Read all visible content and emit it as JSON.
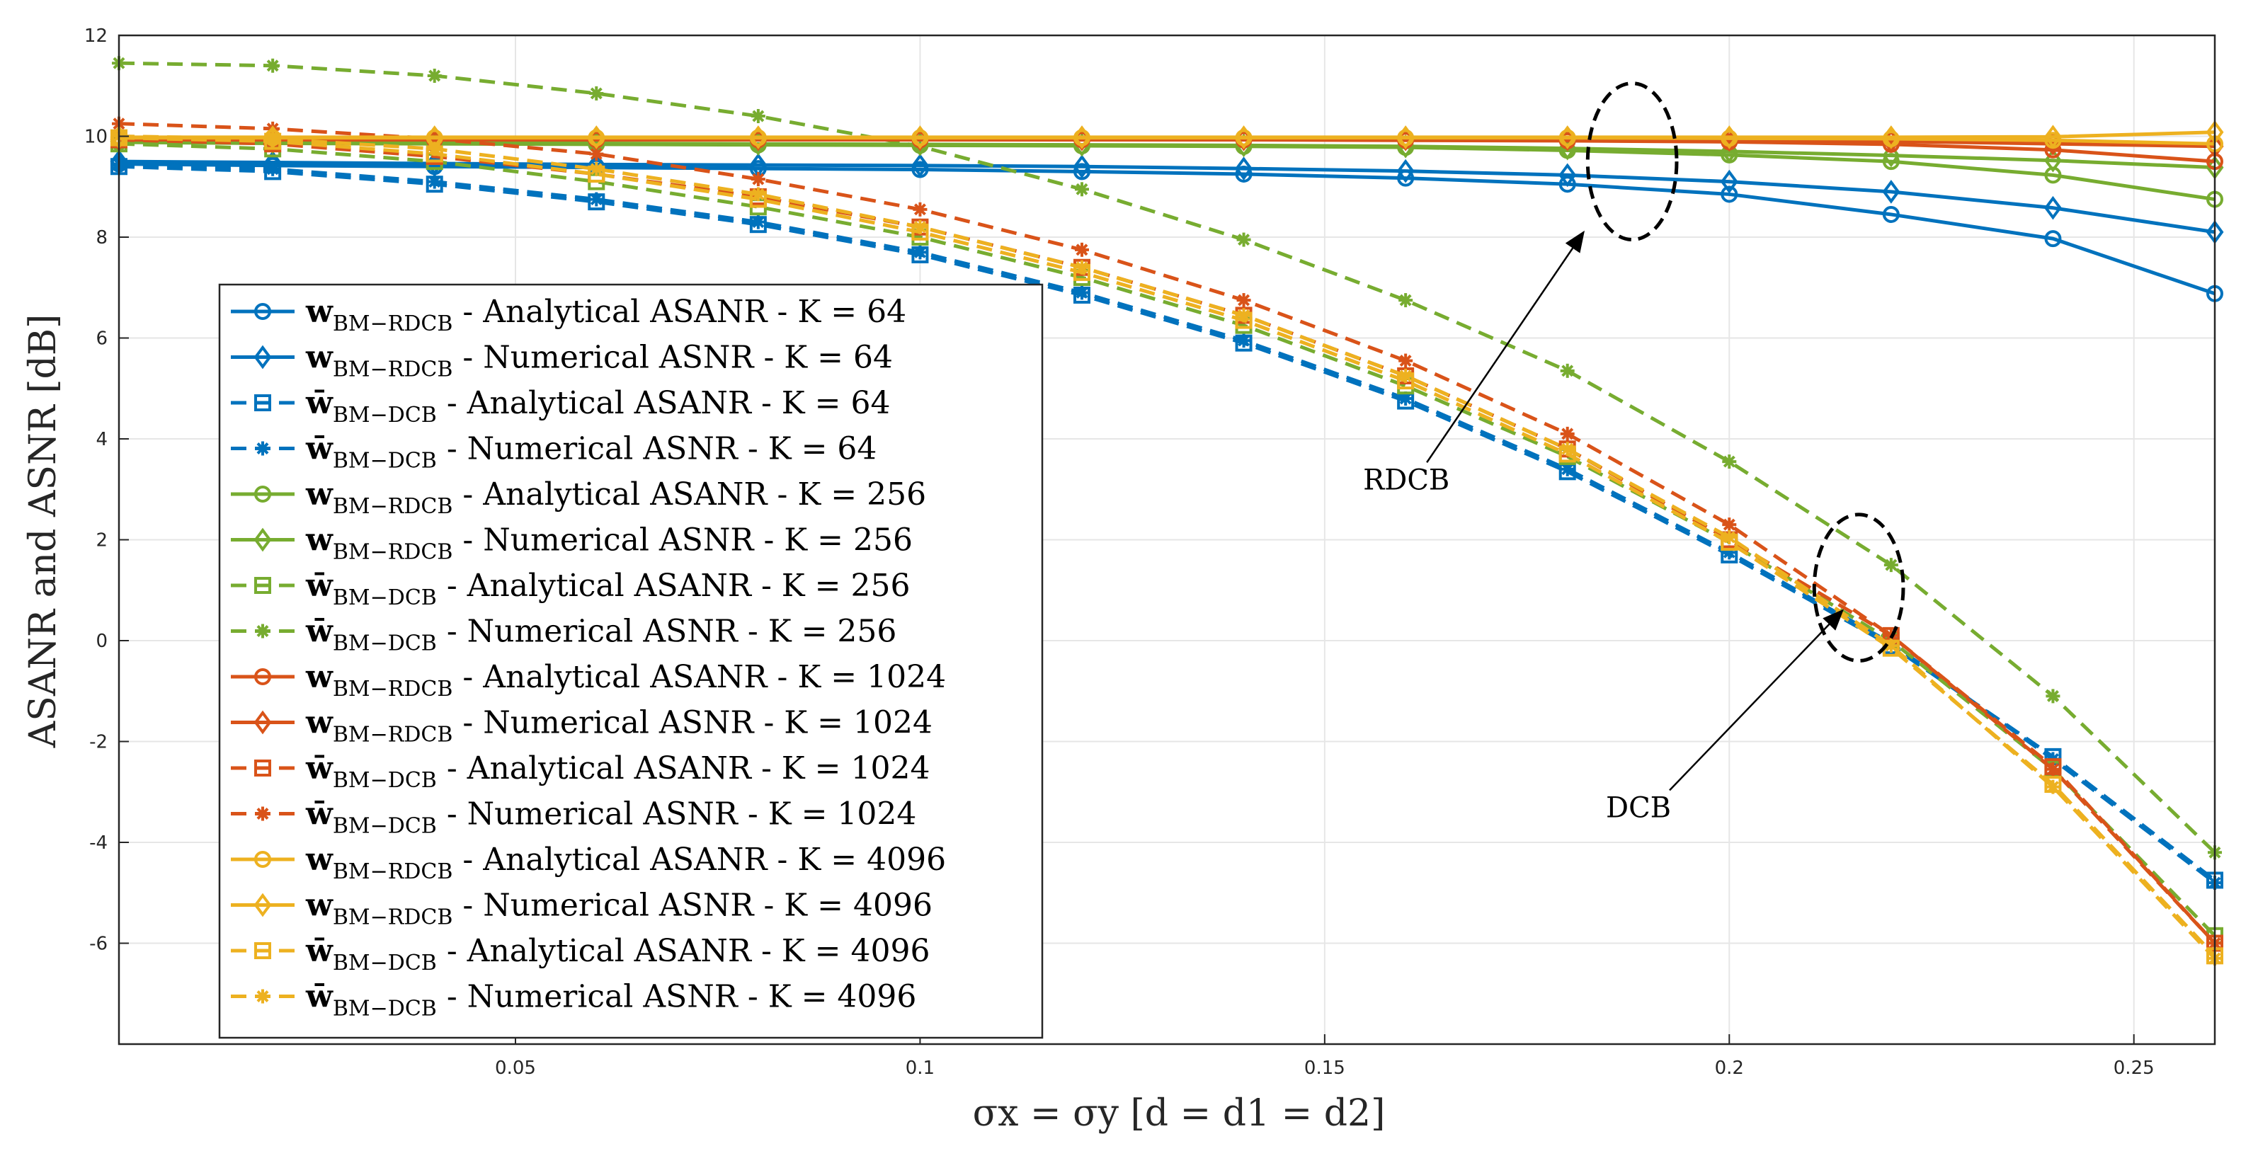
{
  "chart_data": {
    "type": "line",
    "title": "",
    "xlabel": "σx = σy [d = d1 = d2]",
    "ylabel": "ASANR and ASNR [dB]",
    "xlim": [
      0.001,
      0.26
    ],
    "ylim": [
      -8,
      12
    ],
    "xticks": [
      "0.05",
      "0.1",
      "0.15",
      "0.2",
      "0.25"
    ],
    "yticks": [
      "12",
      "10",
      "8",
      "6",
      "4",
      "2",
      "0",
      "-2",
      "-4",
      "-6"
    ],
    "grid": true,
    "legend_position": "center-left",
    "colors": {
      "K64": "#0072BD",
      "K256": "#77AC30",
      "K1024": "#D95319",
      "K4096": "#EDB120"
    },
    "x": [
      0.001,
      0.02,
      0.04,
      0.06,
      0.08,
      0.1,
      0.12,
      0.14,
      0.16,
      0.18,
      0.2,
      0.22,
      0.24,
      0.26
    ],
    "series": [
      {
        "name": "w_BM-RDCB - Analytical ASANR - K = 64",
        "legend_vec": "w",
        "legend_sub": "BM−RDCB",
        "legend_rest": " - Analytical ASANR - K = 64",
        "color_key": "K64",
        "dash": "solid",
        "marker": "circle",
        "values": [
          9.45,
          9.42,
          9.4,
          9.38,
          9.36,
          9.34,
          9.3,
          9.25,
          9.17,
          9.05,
          8.85,
          8.45,
          7.97,
          6.88
        ]
      },
      {
        "name": "w_BM-RDCB - Numerical ASNR - K = 64",
        "legend_vec": "w",
        "legend_sub": "BM−RDCB",
        "legend_rest": " - Numerical ASNR - K = 64",
        "color_key": "K64",
        "dash": "solid",
        "marker": "diamond",
        "values": [
          9.5,
          9.48,
          9.46,
          9.44,
          9.43,
          9.42,
          9.4,
          9.36,
          9.31,
          9.23,
          9.1,
          8.9,
          8.58,
          8.1
        ]
      },
      {
        "name": "w̄_BM-DCB - Analytical ASANR - K = 64",
        "legend_vec": "w̄",
        "legend_sub": "BM−DCB",
        "legend_rest": " - Analytical ASANR - K = 64",
        "color_key": "K64",
        "dash": "dashed",
        "marker": "square",
        "values": [
          9.4,
          9.3,
          9.05,
          8.7,
          8.25,
          7.65,
          6.85,
          5.9,
          4.75,
          3.35,
          1.7,
          -0.1,
          -2.3,
          -4.75
        ]
      },
      {
        "name": "w̄_BM-DCB - Numerical ASNR - K = 64",
        "legend_vec": "w̄",
        "legend_sub": "BM−DCB",
        "legend_rest": " - Numerical ASNR - K = 64",
        "color_key": "K64",
        "dash": "dashed",
        "marker": "star",
        "values": [
          9.45,
          9.35,
          9.1,
          8.75,
          8.3,
          7.7,
          6.9,
          5.95,
          4.8,
          3.4,
          1.75,
          -0.05,
          -2.35,
          -4.8
        ]
      },
      {
        "name": "w_BM-RDCB - Analytical ASANR - K = 256",
        "legend_vec": "w",
        "legend_sub": "BM−RDCB",
        "legend_rest": " - Analytical ASANR - K = 256",
        "color_key": "K256",
        "dash": "solid",
        "marker": "circle",
        "values": [
          9.88,
          9.86,
          9.85,
          9.84,
          9.83,
          9.82,
          9.81,
          9.8,
          9.78,
          9.72,
          9.63,
          9.5,
          9.23,
          8.75
        ]
      },
      {
        "name": "w_BM-RDCB - Numerical ASNR - K = 256",
        "legend_vec": "w",
        "legend_sub": "BM−RDCB",
        "legend_rest": " - Numerical ASNR - K = 256",
        "color_key": "K256",
        "dash": "solid",
        "marker": "diamond",
        "values": [
          9.9,
          9.88,
          9.87,
          9.86,
          9.85,
          9.84,
          9.83,
          9.82,
          9.8,
          9.76,
          9.7,
          9.62,
          9.52,
          9.38
        ]
      },
      {
        "name": "w̄_BM-DCB - Analytical ASANR - K = 256",
        "legend_vec": "w̄",
        "legend_sub": "BM−DCB",
        "legend_rest": " - Analytical ASANR - K = 256",
        "color_key": "K256",
        "dash": "dashed",
        "marker": "square",
        "values": [
          9.85,
          9.75,
          9.5,
          9.1,
          8.6,
          8.0,
          7.2,
          6.25,
          5.05,
          3.65,
          1.95,
          0.0,
          -2.55,
          -5.85
        ]
      },
      {
        "name": "w̄_BM-DCB - Numerical ASNR - K = 256",
        "legend_vec": "w̄",
        "legend_sub": "BM−DCB",
        "legend_rest": " - Numerical ASNR - K = 256",
        "color_key": "K256",
        "dash": "dashed",
        "marker": "star",
        "values": [
          11.45,
          11.4,
          11.2,
          10.85,
          10.4,
          9.8,
          8.95,
          7.95,
          6.75,
          5.35,
          3.55,
          1.5,
          -1.1,
          -4.2
        ]
      },
      {
        "name": "w_BM-RDCB - Analytical ASANR - K = 1024",
        "legend_vec": "w",
        "legend_sub": "BM−RDCB",
        "legend_rest": " - Analytical ASANR - K = 1024",
        "color_key": "K1024",
        "dash": "solid",
        "marker": "circle",
        "values": [
          9.93,
          9.93,
          9.93,
          9.93,
          9.93,
          9.93,
          9.93,
          9.93,
          9.92,
          9.91,
          9.89,
          9.84,
          9.73,
          9.5
        ]
      },
      {
        "name": "w_BM-RDCB - Numerical ASNR - K = 1024",
        "legend_vec": "w",
        "legend_sub": "BM−RDCB",
        "legend_rest": " - Numerical ASNR - K = 1024",
        "color_key": "K1024",
        "dash": "solid",
        "marker": "diamond",
        "values": [
          9.94,
          9.94,
          9.94,
          9.94,
          9.94,
          9.94,
          9.94,
          9.94,
          9.94,
          9.94,
          9.93,
          9.9,
          9.85,
          9.8
        ]
      },
      {
        "name": "w̄_BM-DCB - Analytical ASANR - K = 1024",
        "legend_vec": "w̄",
        "legend_sub": "BM−DCB",
        "legend_rest": " - Analytical ASANR - K = 1024",
        "color_key": "K1024",
        "dash": "dashed",
        "marker": "square",
        "values": [
          9.93,
          9.85,
          9.6,
          9.25,
          8.8,
          8.2,
          7.4,
          6.45,
          5.25,
          3.8,
          2.0,
          0.1,
          -2.5,
          -6.0
        ]
      },
      {
        "name": "w̄_BM-DCB - Numerical ASNR - K = 1024",
        "legend_vec": "w̄",
        "legend_sub": "BM−DCB",
        "legend_rest": " - Numerical ASNR - K = 1024",
        "color_key": "K1024",
        "dash": "dashed",
        "marker": "star",
        "values": [
          10.25,
          10.15,
          9.95,
          9.65,
          9.15,
          8.55,
          7.75,
          6.75,
          5.55,
          4.1,
          2.3,
          0.1,
          -2.55,
          -6.0
        ]
      },
      {
        "name": "w_BM-RDCB - Analytical ASANR - K = 4096",
        "legend_vec": "w",
        "legend_sub": "BM−RDCB",
        "legend_rest": " - Analytical ASANR - K = 4096",
        "color_key": "K4096",
        "dash": "solid",
        "marker": "circle",
        "values": [
          9.97,
          9.97,
          9.97,
          9.97,
          9.97,
          9.97,
          9.97,
          9.97,
          9.97,
          9.97,
          9.96,
          9.95,
          9.92,
          9.85
        ]
      },
      {
        "name": "w_BM-RDCB - Numerical ASNR - K = 4096",
        "legend_vec": "w",
        "legend_sub": "BM−RDCB",
        "legend_rest": " - Numerical ASNR - K = 4096",
        "color_key": "K4096",
        "dash": "solid",
        "marker": "diamond",
        "values": [
          9.98,
          9.98,
          9.98,
          9.98,
          9.98,
          9.98,
          9.98,
          9.98,
          9.98,
          9.98,
          9.98,
          9.98,
          9.99,
          10.08
        ]
      },
      {
        "name": "w̄_BM-DCB - Analytical ASANR - K = 4096",
        "legend_vec": "w̄",
        "legend_sub": "BM−DCB",
        "legend_rest": " - Analytical ASANR - K = 4096",
        "color_key": "K4096",
        "dash": "dashed",
        "marker": "square",
        "values": [
          9.97,
          9.9,
          9.65,
          9.25,
          8.75,
          8.1,
          7.3,
          6.35,
          5.15,
          3.7,
          1.95,
          -0.15,
          -2.85,
          -6.25
        ]
      },
      {
        "name": "w̄_BM-DCB - Numerical ASNR - K = 4096",
        "legend_vec": "w̄",
        "legend_sub": "BM−DCB",
        "legend_rest": " - Numerical ASNR - K = 4096",
        "color_key": "K4096",
        "dash": "dashed",
        "marker": "star",
        "values": [
          10.0,
          9.95,
          9.75,
          9.35,
          8.85,
          8.2,
          7.4,
          6.45,
          5.25,
          3.8,
          2.05,
          -0.1,
          -2.9,
          -6.3
        ]
      }
    ],
    "annotations": [
      {
        "text": "RDCB",
        "target": [
          0.182,
          8.1
        ],
        "text_at": [
          0.16,
          3.0
        ]
      },
      {
        "text": "DCB",
        "target": [
          0.214,
          0.6
        ],
        "text_at": [
          0.19,
          -3.5
        ]
      }
    ],
    "ellipses": [
      {
        "cx": 0.188,
        "cy": 9.5,
        "rx": 0.0055,
        "ry": 1.55
      },
      {
        "cx": 0.216,
        "cy": 1.05,
        "rx": 0.0055,
        "ry": 1.45
      }
    ]
  }
}
